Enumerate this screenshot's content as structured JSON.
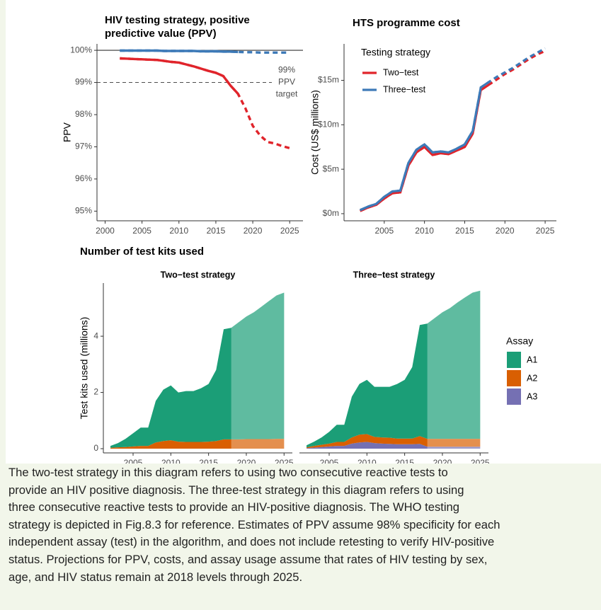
{
  "section_title": "Number of test kits used",
  "caption": [
    "The two-test strategy in this diagram refers to using two consecutive reactive tests to",
    "provide an HIV positive diagnosis. The three-test strategy in this diagram refers to using",
    "three consecutive reactive tests to provide an HIV-positive diagnosis. The WHO testing",
    "strategy is depicted in Fig.8.3 for reference. Estimates of PPV assume 98% specificity for each",
    "independent assay (test) in the algorithm, and does not include retesting to verify HIV-positive",
    "status.  Projections for PPV, costs, and assay usage assume that rates of HIV testing by sex,",
    "age, and HIV status remain at 2018 levels through 2025."
  ],
  "chart_data": [
    {
      "type": "line",
      "title": "HIV testing strategy, positive predictive value (PPV)",
      "y_label": "PPV",
      "x": [
        2002,
        2003,
        2004,
        2005,
        2006,
        2007,
        2008,
        2009,
        2010,
        2011,
        2012,
        2013,
        2014,
        2015,
        2016,
        2017,
        2018,
        2019,
        2020,
        2021,
        2022,
        2023,
        2024,
        2025
      ],
      "series": [
        {
          "color": "#e0242b",
          "values": [
            99.75,
            99.74,
            99.73,
            99.72,
            99.71,
            99.7,
            99.67,
            99.64,
            99.62,
            99.56,
            99.5,
            99.43,
            99.36,
            99.3,
            99.2,
            98.9,
            98.65,
            98.2,
            97.65,
            97.35,
            97.15,
            97.1,
            97.02,
            96.96
          ]
        },
        {
          "color": "#3d7ab8",
          "values": [
            99.99,
            99.99,
            99.99,
            99.99,
            99.99,
            99.99,
            99.98,
            99.98,
            99.98,
            99.98,
            99.98,
            99.97,
            99.97,
            99.97,
            99.96,
            99.96,
            99.95,
            99.94,
            99.94,
            99.93,
            99.93,
            99.93,
            99.93,
            99.93
          ]
        }
      ],
      "dashed_from": 2018,
      "reference_lines": [
        {
          "value": 100
        },
        {
          "value": 99,
          "dashed": true,
          "label_lines": [
            "99%",
            "PPV",
            "target"
          ]
        }
      ],
      "xlim": [
        1998.9,
        2026.8
      ],
      "xticks": [
        2000,
        2005,
        2010,
        2015,
        2020,
        2025
      ],
      "ylim": [
        94.7,
        100.2
      ],
      "yticks": [
        {
          "value": 95,
          "label": "95%"
        },
        {
          "value": 96,
          "label": "96%"
        },
        {
          "value": 97,
          "label": "97%"
        },
        {
          "value": 98,
          "label": "98%"
        },
        {
          "value": 99,
          "label": "99%"
        },
        {
          "value": 100,
          "label": "100%"
        }
      ]
    },
    {
      "type": "line",
      "title": "HTS programme cost",
      "y_label": "Cost (US$ millions)",
      "legend_title": "Testing strategy",
      "legend_position": "top-left",
      "x": [
        2002,
        2003,
        2004,
        2005,
        2006,
        2007,
        2008,
        2009,
        2010,
        2011,
        2012,
        2013,
        2014,
        2015,
        2016,
        2017,
        2018,
        2019,
        2020,
        2021,
        2022,
        2023,
        2024,
        2025
      ],
      "series": [
        {
          "name": "Two−test",
          "color": "#e0242b",
          "values": [
            0.3,
            0.7,
            1.0,
            1.7,
            2.3,
            2.4,
            5.4,
            6.9,
            7.5,
            6.6,
            6.8,
            6.7,
            7.1,
            7.5,
            9.0,
            13.9,
            14.5,
            15.1,
            15.7,
            16.2,
            16.8,
            17.4,
            17.9,
            18.3
          ]
        },
        {
          "name": "Three−test",
          "color": "#3d7ab8",
          "values": [
            0.4,
            0.8,
            1.1,
            1.9,
            2.5,
            2.6,
            5.7,
            7.2,
            7.8,
            6.9,
            7.0,
            6.9,
            7.3,
            7.8,
            9.3,
            14.2,
            14.8,
            15.4,
            15.9,
            16.4,
            17.0,
            17.6,
            18.1,
            18.6
          ]
        }
      ],
      "dashed_from": 2018,
      "xlim": [
        2000,
        2026.4
      ],
      "xticks": [
        2005,
        2010,
        2015,
        2020,
        2025
      ],
      "ylim": [
        -0.8,
        19.1
      ],
      "yticks": [
        {
          "value": 0,
          "label": "$0m"
        },
        {
          "value": 5,
          "label": "$5m"
        },
        {
          "value": 10,
          "label": "$10m"
        },
        {
          "value": 15,
          "label": "$15m"
        }
      ]
    },
    {
      "type": "stacked_area",
      "title": "Two−test strategy",
      "y_label": "Test kits used (millions)",
      "x": [
        2002,
        2003,
        2004,
        2005,
        2006,
        2007,
        2008,
        2009,
        2010,
        2011,
        2012,
        2013,
        2014,
        2015,
        2016,
        2017,
        2018,
        2019,
        2020,
        2021,
        2022,
        2023,
        2024,
        2025
      ],
      "series": [
        {
          "color": "#d95f02",
          "values": [
            0.03,
            0.05,
            0.06,
            0.08,
            0.1,
            0.1,
            0.22,
            0.27,
            0.3,
            0.25,
            0.24,
            0.24,
            0.24,
            0.25,
            0.27,
            0.33,
            0.33,
            0.33,
            0.34,
            0.34,
            0.34,
            0.34,
            0.35,
            0.35
          ]
        },
        {
          "color": "#1b9e77",
          "values": [
            0.07,
            0.15,
            0.29,
            0.47,
            0.65,
            0.65,
            1.48,
            1.83,
            1.95,
            1.75,
            1.81,
            1.81,
            1.91,
            2.05,
            2.53,
            3.92,
            3.97,
            4.17,
            4.36,
            4.51,
            4.71,
            4.91,
            5.1,
            5.2
          ]
        }
      ],
      "projection_from": 2018,
      "xlim": [
        2001.06,
        2026.1
      ],
      "xticks": [
        2005,
        2010,
        2015,
        2020,
        2025
      ],
      "ylim": [
        -0.15,
        5.89
      ],
      "yticks": [
        0,
        2,
        4
      ]
    },
    {
      "type": "stacked_area",
      "title": "Three−test strategy",
      "legend_title": "Assay",
      "x": [
        2002,
        2003,
        2004,
        2005,
        2006,
        2007,
        2008,
        2009,
        2010,
        2011,
        2012,
        2013,
        2014,
        2015,
        2016,
        2017,
        2018,
        2019,
        2020,
        2021,
        2022,
        2023,
        2024,
        2025
      ],
      "series": [
        {
          "name": "A3",
          "color": "#7570b3",
          "values": [
            0.02,
            0.04,
            0.06,
            0.08,
            0.1,
            0.1,
            0.18,
            0.22,
            0.24,
            0.2,
            0.18,
            0.17,
            0.16,
            0.16,
            0.16,
            0.17,
            0.07,
            0.07,
            0.07,
            0.07,
            0.07,
            0.07,
            0.07,
            0.07
          ]
        },
        {
          "name": "A2",
          "color": "#d95f02",
          "values": [
            0.03,
            0.06,
            0.08,
            0.1,
            0.14,
            0.14,
            0.22,
            0.28,
            0.28,
            0.22,
            0.22,
            0.22,
            0.2,
            0.2,
            0.2,
            0.28,
            0.28,
            0.28,
            0.28,
            0.28,
            0.28,
            0.28,
            0.28,
            0.28
          ]
        },
        {
          "name": "A1",
          "color": "#1b9e77",
          "values": [
            0.07,
            0.15,
            0.26,
            0.42,
            0.61,
            0.61,
            1.45,
            1.8,
            1.93,
            1.78,
            1.8,
            1.81,
            1.94,
            2.09,
            2.54,
            3.95,
            4.1,
            4.3,
            4.5,
            4.65,
            4.85,
            5.03,
            5.2,
            5.27
          ]
        }
      ],
      "projection_from": 2018,
      "xlim": [
        2001.06,
        2026.1
      ],
      "xticks": [
        2005,
        2010,
        2015,
        2020,
        2025
      ],
      "ylim": [
        -0.15,
        5.89
      ]
    }
  ]
}
